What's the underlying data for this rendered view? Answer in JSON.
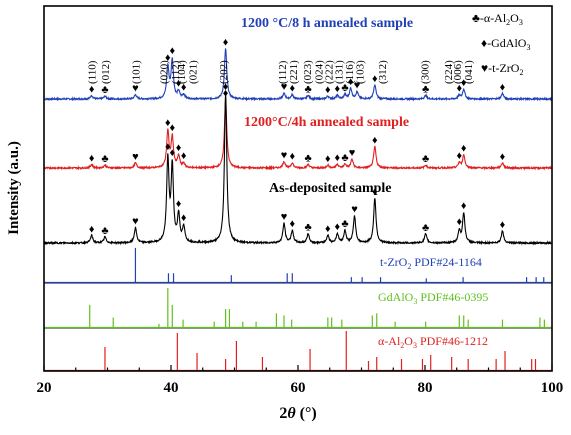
{
  "chart_data": {
    "type": "line",
    "xlabel_main": "2",
    "xlabel_theta": "θ",
    "xlabel_unit": " (°)",
    "ylabel": "Intensity (a.u.)",
    "xlim": [
      20,
      100
    ],
    "xticks": [
      20,
      40,
      60,
      80,
      100
    ],
    "series": [
      {
        "name": "1200 °C/8 h annealed sample",
        "color": "#2040b8",
        "panel": 0,
        "peaks": [
          [
            27.5,
            0.05
          ],
          [
            29.6,
            0.04
          ],
          [
            34.4,
            0.06
          ],
          [
            39.5,
            0.45
          ],
          [
            40.2,
            0.55
          ],
          [
            41.2,
            0.1
          ],
          [
            42.0,
            0.06
          ],
          [
            48.6,
            0.72
          ],
          [
            57.8,
            0.08
          ],
          [
            59.1,
            0.06
          ],
          [
            61.6,
            0.05
          ],
          [
            64.7,
            0.04
          ],
          [
            66.2,
            0.05
          ],
          [
            67.4,
            0.06
          ],
          [
            68.3,
            0.15
          ],
          [
            69.3,
            0.1
          ],
          [
            72.1,
            0.2
          ],
          [
            80.1,
            0.05
          ],
          [
            85.4,
            0.05
          ],
          [
            86.1,
            0.14
          ],
          [
            92.2,
            0.08
          ]
        ],
        "width": 0.22
      },
      {
        "name": "1200°C/4h annealed sample",
        "color": "#e02020",
        "panel": 1,
        "peaks": [
          [
            27.5,
            0.05
          ],
          [
            29.6,
            0.04
          ],
          [
            34.4,
            0.07
          ],
          [
            39.5,
            0.5
          ],
          [
            40.2,
            0.42
          ],
          [
            41.2,
            0.16
          ],
          [
            42.0,
            0.06
          ],
          [
            48.6,
            0.95
          ],
          [
            57.8,
            0.09
          ],
          [
            59.1,
            0.07
          ],
          [
            61.6,
            0.05
          ],
          [
            64.7,
            0.04
          ],
          [
            66.2,
            0.05
          ],
          [
            67.4,
            0.05
          ],
          [
            68.5,
            0.12
          ],
          [
            72.1,
            0.3
          ],
          [
            80.1,
            0.04
          ],
          [
            85.4,
            0.07
          ],
          [
            86.1,
            0.18
          ],
          [
            92.2,
            0.07
          ]
        ],
        "width": 0.22
      },
      {
        "name": "As-deposited sample",
        "color": "#000000",
        "panel": 2,
        "peaks": [
          [
            27.5,
            0.05
          ],
          [
            29.6,
            0.04
          ],
          [
            34.4,
            0.1
          ],
          [
            39.5,
            0.55
          ],
          [
            40.2,
            0.5
          ],
          [
            41.2,
            0.18
          ],
          [
            42.0,
            0.1
          ],
          [
            48.6,
            1.0
          ],
          [
            57.8,
            0.13
          ],
          [
            59.1,
            0.08
          ],
          [
            61.6,
            0.06
          ],
          [
            64.7,
            0.05
          ],
          [
            66.2,
            0.06
          ],
          [
            67.4,
            0.08
          ],
          [
            68.9,
            0.18
          ],
          [
            72.1,
            0.3
          ],
          [
            80.1,
            0.06
          ],
          [
            85.4,
            0.08
          ],
          [
            86.1,
            0.2
          ],
          [
            92.2,
            0.08
          ]
        ],
        "width": 0.22
      }
    ],
    "references": [
      {
        "label_main": "t-ZrO",
        "label_sub": "2",
        "label_card": "  PDF#24-1164",
        "color": "#2040b8",
        "sticks": [
          [
            34.4,
            0.9
          ],
          [
            39.6,
            0.25
          ],
          [
            40.4,
            0.25
          ],
          [
            49.5,
            0.2
          ],
          [
            58.3,
            0.25
          ],
          [
            59.1,
            0.25
          ],
          [
            68.4,
            0.15
          ],
          [
            70.1,
            0.15
          ],
          [
            73.0,
            0.15
          ],
          [
            80.2,
            0.12
          ],
          [
            86.0,
            0.15
          ],
          [
            96.0,
            0.15
          ],
          [
            97.5,
            0.15
          ],
          [
            98.7,
            0.15
          ]
        ]
      },
      {
        "label_main": "GdAlO",
        "label_sub": "3",
        "label_card": "  PDF#46-0395",
        "color": "#60c020",
        "sticks": [
          [
            27.2,
            0.55
          ],
          [
            30.9,
            0.25
          ],
          [
            38.1,
            0.1
          ],
          [
            39.5,
            0.95
          ],
          [
            40.2,
            0.55
          ],
          [
            41.9,
            0.2
          ],
          [
            46.8,
            0.15
          ],
          [
            48.6,
            0.45
          ],
          [
            49.2,
            0.45
          ],
          [
            51.3,
            0.15
          ],
          [
            53.4,
            0.15
          ],
          [
            56.6,
            0.35
          ],
          [
            57.8,
            0.3
          ],
          [
            59.0,
            0.2
          ],
          [
            64.7,
            0.25
          ],
          [
            65.3,
            0.25
          ],
          [
            66.9,
            0.2
          ],
          [
            71.7,
            0.3
          ],
          [
            72.4,
            0.35
          ],
          [
            75.3,
            0.15
          ],
          [
            80.1,
            0.15
          ],
          [
            85.4,
            0.3
          ],
          [
            86.1,
            0.3
          ],
          [
            86.8,
            0.2
          ],
          [
            92.2,
            0.2
          ],
          [
            98.1,
            0.25
          ],
          [
            98.8,
            0.2
          ]
        ]
      },
      {
        "label_main": "α-Al",
        "label_sub": "2",
        "label_mid": "O",
        "label_sub2": "3",
        "label_card": "  PDF#46-1212",
        "color": "#e02020",
        "sticks": [
          [
            29.6,
            0.6
          ],
          [
            41.0,
            0.95
          ],
          [
            44.1,
            0.45
          ],
          [
            48.6,
            0.3
          ],
          [
            50.3,
            0.75
          ],
          [
            54.4,
            0.35
          ],
          [
            61.9,
            0.55
          ],
          [
            67.6,
            1.0
          ],
          [
            71.1,
            0.25
          ],
          [
            72.4,
            0.35
          ],
          [
            76.3,
            0.3
          ],
          [
            79.6,
            0.3
          ],
          [
            80.9,
            0.4
          ],
          [
            84.2,
            0.35
          ],
          [
            86.8,
            0.3
          ],
          [
            91.2,
            0.3
          ],
          [
            92.6,
            0.5
          ],
          [
            96.8,
            0.3
          ],
          [
            97.4,
            0.3
          ]
        ]
      }
    ],
    "legend": [
      {
        "symbol": "♣",
        "text_main": "-α-Al",
        "text_sub": "2",
        "text_mid": "O",
        "text_sub2": "3"
      },
      {
        "symbol": "♦",
        "text_main": "-GdAlO",
        "text_sub": "3"
      },
      {
        "symbol": "♥",
        "text_main": "-t-ZrO",
        "text_sub": "2"
      }
    ],
    "annotations": [
      {
        "label": "(110)",
        "x": 27.5
      },
      {
        "label": "(012)",
        "x": 29.6
      },
      {
        "label": "(101)",
        "x": 34.4
      },
      {
        "label": "(020)",
        "x": 38.8
      },
      {
        "label": "(112)",
        "x": 40.6
      },
      {
        "label": "(104)",
        "x": 41.6
      },
      {
        "label": "(021)",
        "x": 43.4
      },
      {
        "label": "(202)",
        "x": 48.2
      },
      {
        "label": "(112)",
        "x": 57.5
      },
      {
        "label": "(221)",
        "x": 59.2
      },
      {
        "label": "(023)",
        "x": 61.4
      },
      {
        "label": "(024)",
        "x": 63.2
      },
      {
        "label": "(222)",
        "x": 64.8
      },
      {
        "label": "(131)",
        "x": 66.4
      },
      {
        "label": "(116)",
        "x": 68.0
      },
      {
        "label": "(103)",
        "x": 69.7
      },
      {
        "label": "(312)",
        "x": 73.2
      },
      {
        "label": "(300)",
        "x": 79.9
      },
      {
        "label": "(224)",
        "x": 83.6
      },
      {
        "label": "(006)",
        "x": 85.0
      },
      {
        "label": "(041)",
        "x": 86.8
      }
    ],
    "peak_markers": [
      {
        "panel": 0,
        "items": [
          [
            27.5,
            "♦"
          ],
          [
            29.6,
            "♣"
          ],
          [
            34.4,
            "♥"
          ],
          [
            39.5,
            "♦"
          ],
          [
            40.2,
            "♦"
          ],
          [
            41.2,
            "♦"
          ],
          [
            42.0,
            "♦"
          ],
          [
            48.6,
            "♦"
          ],
          [
            57.8,
            "♥"
          ],
          [
            59.1,
            "♦"
          ],
          [
            61.6,
            "♣"
          ],
          [
            64.7,
            "♦"
          ],
          [
            66.2,
            "♦"
          ],
          [
            67.4,
            "♣"
          ],
          [
            68.3,
            "♦"
          ],
          [
            69.3,
            "♥"
          ],
          [
            72.1,
            "♦"
          ],
          [
            80.1,
            "♣"
          ],
          [
            85.4,
            "♦"
          ],
          [
            86.1,
            "♦"
          ],
          [
            92.2,
            "♦"
          ]
        ]
      },
      {
        "panel": 1,
        "items": [
          [
            27.5,
            "♦"
          ],
          [
            29.6,
            "♣"
          ],
          [
            34.4,
            "♥"
          ],
          [
            39.5,
            "♦"
          ],
          [
            40.2,
            "♦"
          ],
          [
            41.2,
            "♦"
          ],
          [
            42.0,
            "♦"
          ],
          [
            48.6,
            "♦"
          ],
          [
            57.8,
            "♥"
          ],
          [
            59.1,
            "♦"
          ],
          [
            61.6,
            "♣"
          ],
          [
            64.7,
            "♦"
          ],
          [
            66.2,
            "♦"
          ],
          [
            67.4,
            "♣"
          ],
          [
            68.5,
            "♥"
          ],
          [
            72.1,
            "♦"
          ],
          [
            80.1,
            "♣"
          ],
          [
            85.4,
            "♦"
          ],
          [
            86.1,
            "♦"
          ],
          [
            92.2,
            "♦"
          ]
        ]
      },
      {
        "panel": 2,
        "items": [
          [
            27.5,
            "♦"
          ],
          [
            29.6,
            "♣"
          ],
          [
            34.4,
            "♥"
          ],
          [
            39.5,
            "♦"
          ],
          [
            40.2,
            "♦"
          ],
          [
            41.2,
            "♦"
          ],
          [
            42.0,
            "♦"
          ],
          [
            48.6,
            "♦"
          ],
          [
            57.8,
            "♥"
          ],
          [
            59.1,
            "♦"
          ],
          [
            61.6,
            "♣"
          ],
          [
            64.7,
            "♦"
          ],
          [
            66.2,
            "♦"
          ],
          [
            67.4,
            "♣"
          ],
          [
            68.9,
            "♥"
          ],
          [
            72.1,
            "♦"
          ],
          [
            80.1,
            "♣"
          ],
          [
            85.4,
            "♦"
          ],
          [
            86.1,
            "♦"
          ],
          [
            92.2,
            "♦"
          ]
        ]
      }
    ]
  }
}
